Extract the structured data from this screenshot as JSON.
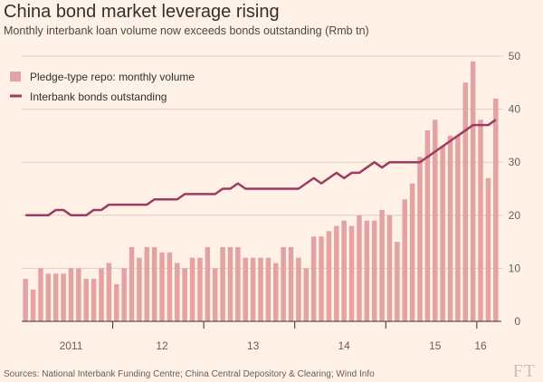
{
  "header": {
    "title": "China bond market leverage rising",
    "subtitle": "Monthly interbank loan volume now exceeds bonds outstanding (Rmb tn)"
  },
  "footer": {
    "source": "Sources: National Interbank Funding Centre; China Central Depository & Clearing; Wind Info",
    "logo_text": "FT"
  },
  "colors": {
    "bar": "#e4a3a3",
    "line": "#9e3a63",
    "grid": "#dbcfc2",
    "axis": "#33302e",
    "background": "#fff1e5"
  },
  "chart_data": {
    "type": "bar+line",
    "title": "China bond market leverage rising",
    "subtitle": "Monthly interbank loan volume now exceeds bonds outstanding (Rmb tn)",
    "xlabel": "",
    "ylabel": "",
    "ylim": [
      0,
      50
    ],
    "yticks": [
      0,
      10,
      20,
      30,
      40,
      50
    ],
    "grid": true,
    "legend_position": "top-left",
    "x_tick_labels": [
      {
        "label": "2011",
        "index": 6
      },
      {
        "label": "12",
        "index": 18
      },
      {
        "label": "13",
        "index": 30
      },
      {
        "label": "14",
        "index": 42
      },
      {
        "label": "15",
        "index": 54
      },
      {
        "label": "16",
        "index": 60
      }
    ],
    "year_boundaries": [
      12,
      24,
      36,
      48,
      60
    ],
    "series": [
      {
        "name": "Pledge-type repo: monthly volume",
        "type": "bar",
        "values": [
          8,
          6,
          10,
          9,
          9,
          9,
          10,
          10,
          8,
          8,
          10,
          11,
          7,
          10,
          14,
          12,
          14,
          14,
          13,
          13,
          11,
          10,
          12,
          12,
          14,
          10,
          14,
          14,
          14,
          12,
          12,
          12,
          12,
          11,
          14,
          14,
          12,
          10,
          16,
          16,
          17,
          18,
          19,
          18,
          20,
          19,
          19,
          21,
          20,
          15,
          23,
          26,
          31,
          36,
          38,
          33,
          35,
          35,
          45,
          49,
          38,
          27,
          42
        ]
      },
      {
        "name": "Interbank bonds outstanding",
        "type": "line",
        "values": [
          20,
          20,
          20,
          20,
          21,
          21,
          20,
          20,
          20,
          21,
          21,
          22,
          22,
          22,
          22,
          22,
          22,
          23,
          23,
          23,
          23,
          24,
          24,
          24,
          24,
          24,
          25,
          25,
          26,
          25,
          25,
          25,
          25,
          25,
          25,
          25,
          25,
          26,
          27,
          26,
          27,
          28,
          27,
          28,
          28,
          29,
          30,
          29,
          30,
          30,
          30,
          30,
          30,
          31,
          32,
          33,
          34,
          35,
          36,
          37,
          37,
          37,
          38
        ]
      }
    ]
  }
}
